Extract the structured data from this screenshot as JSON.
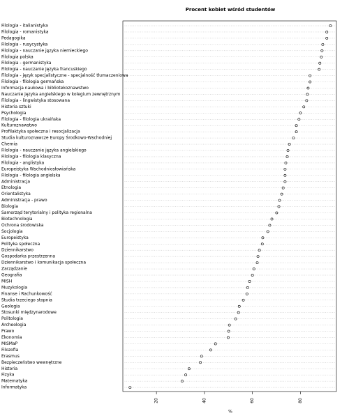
{
  "chart_data": {
    "type": "dot",
    "title": "Procent kobiet wśród studentów",
    "xlabel": "%",
    "categories": [
      "Filologia - italianistyka",
      "Filologia - romanistyka",
      "Pedagogika",
      "Filologia - rusycystyka",
      "Filologia - nauczanie języka niemieckiego",
      "Filologia polska",
      "Filologia - germanistyka",
      "Filologia - nauczanie języka francuskiego",
      "Filologia - język specjalistyczne - specjalność tłumaczeniowa",
      "Filologia - filologia germańska",
      "Informacja naukowa i bibliotekoznawstwo",
      "Nauczanie języka angielskiego w kolegium zewnętrznym",
      "Filologia - lingwistyka stosowana",
      "Historia sztuki",
      "Psychologia",
      "Filologia - filologia ukraińska",
      "Kulturoznawstwo",
      "Profilaktyka społeczna i resocjalizacja",
      "Studia kulturoznawcze Europy Środkowo-Wschodniej",
      "Chemia",
      "Filologia - nauczanie języka angielskiego",
      "Filologia - filologia klasyczna",
      "Filologia - anglistyka",
      "Europeistyka Wschodniosłowiańska",
      "Filologia - filologia angielska",
      "Administracja",
      "Etnologia",
      "Orientalistyka",
      "Administracja - prawo",
      "Biologia",
      "Samorząd terytorialny i polityka regionalna",
      "Biotechnologia",
      "Ochrona środowiska",
      "Socjologia",
      "Europeistyka",
      "Polityka społeczna",
      "Dziennikarstwo",
      "Gospodarka przestrzenna",
      "Dziennikarstwo i komunikacja społeczna",
      "Zarządzanie",
      "Geografia",
      "MISH",
      "Muzykologia",
      "Finanse i Rachunkowość",
      "Studia trzeciego stopnia",
      "Geologia",
      "Stosunki międzynarodowe",
      "Politologia",
      "Archeologia",
      "Prawo",
      "Ekonomia",
      "MISMaP",
      "Filozofia",
      "Erasmus",
      "Bezpieczeństwo wewnętrzne",
      "Historia",
      "Fizyka",
      "Matematyka",
      "Informatyka"
    ],
    "values": [
      92.5,
      91,
      91,
      89.3,
      89,
      88.7,
      88.1,
      87.8,
      84,
      84,
      83.2,
      82.9,
      82.6,
      81.4,
      80,
      79.4,
      78.3,
      78.3,
      77.1,
      75.4,
      74.8,
      74.5,
      73.9,
      73.6,
      73.6,
      73.6,
      72.8,
      72.2,
      71.3,
      71,
      70.1,
      68.1,
      67.2,
      66.4,
      64.3,
      64.1,
      62.9,
      62.3,
      62,
      60.6,
      60,
      58.8,
      58,
      57.7,
      56.2,
      54.5,
      54.2,
      53,
      50.4,
      50.1,
      49.9,
      44.6,
      42.6,
      38.8,
      38.3,
      33.6,
      32.2,
      30.7,
      9
    ],
    "xlim": [
      6,
      95
    ],
    "xticks": [
      20,
      40,
      60,
      80
    ],
    "color": "#000000"
  }
}
